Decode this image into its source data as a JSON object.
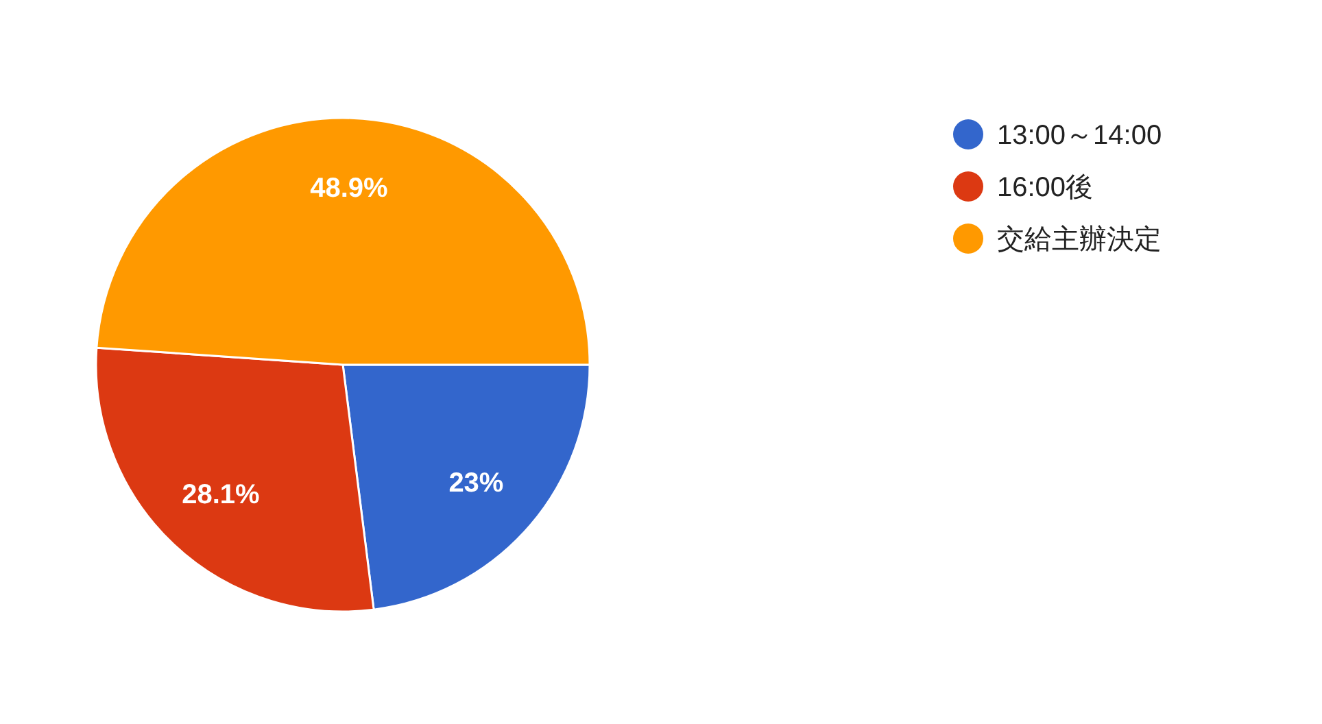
{
  "chart_data": {
    "type": "pie",
    "categories": [
      "13:00～14:00",
      "16:00後",
      "交給主辦決定"
    ],
    "values": [
      23,
      28.1,
      48.9
    ],
    "colors": [
      "#3366cc",
      "#dc3912",
      "#ff9900"
    ],
    "value_labels": [
      "23%",
      "28.1%",
      "48.9%"
    ],
    "legend": "right"
  }
}
